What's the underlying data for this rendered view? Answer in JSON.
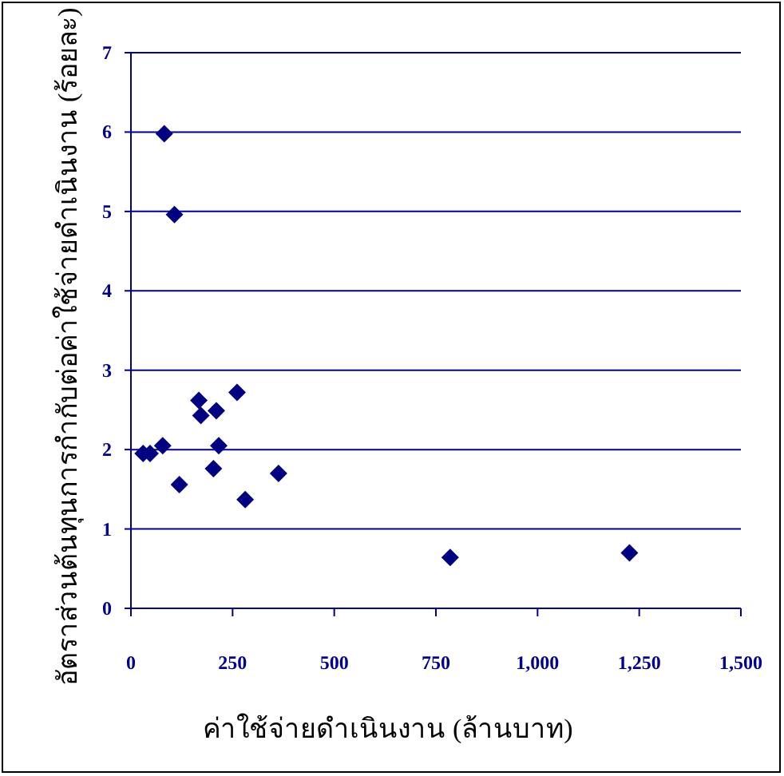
{
  "chart_data": {
    "type": "scatter",
    "xlabel": "ค่าใช้จ่ายดำเนินงาน (ล้านบาท)",
    "ylabel": "อัตราส่วนต้นทุนการกำกับต่อค่าใช้จ่ายดำเนินงาน (ร้อยละ)",
    "xlim": [
      0,
      1500
    ],
    "ylim": [
      0,
      7
    ],
    "xticks": [
      0,
      250,
      500,
      750,
      {
        "value": 1000,
        "label": "1,000"
      },
      {
        "value": 1250,
        "label": "1,250"
      },
      {
        "value": 1500,
        "label": "1,500"
      }
    ],
    "yticks": [
      0,
      1,
      2,
      3,
      4,
      5,
      6,
      7
    ],
    "grid": "y",
    "marker": "diamond",
    "series": [
      {
        "color": "#000080",
        "x": [
          30,
          47,
          78,
          82,
          107,
          119,
          167,
          172,
          203,
          210,
          216,
          261,
          281,
          363,
          785,
          1226
        ],
        "values": [
          1.95,
          1.95,
          2.05,
          5.98,
          4.96,
          1.56,
          2.62,
          2.43,
          1.76,
          2.49,
          2.05,
          2.72,
          1.37,
          1.7,
          0.64,
          0.7
        ]
      }
    ]
  }
}
